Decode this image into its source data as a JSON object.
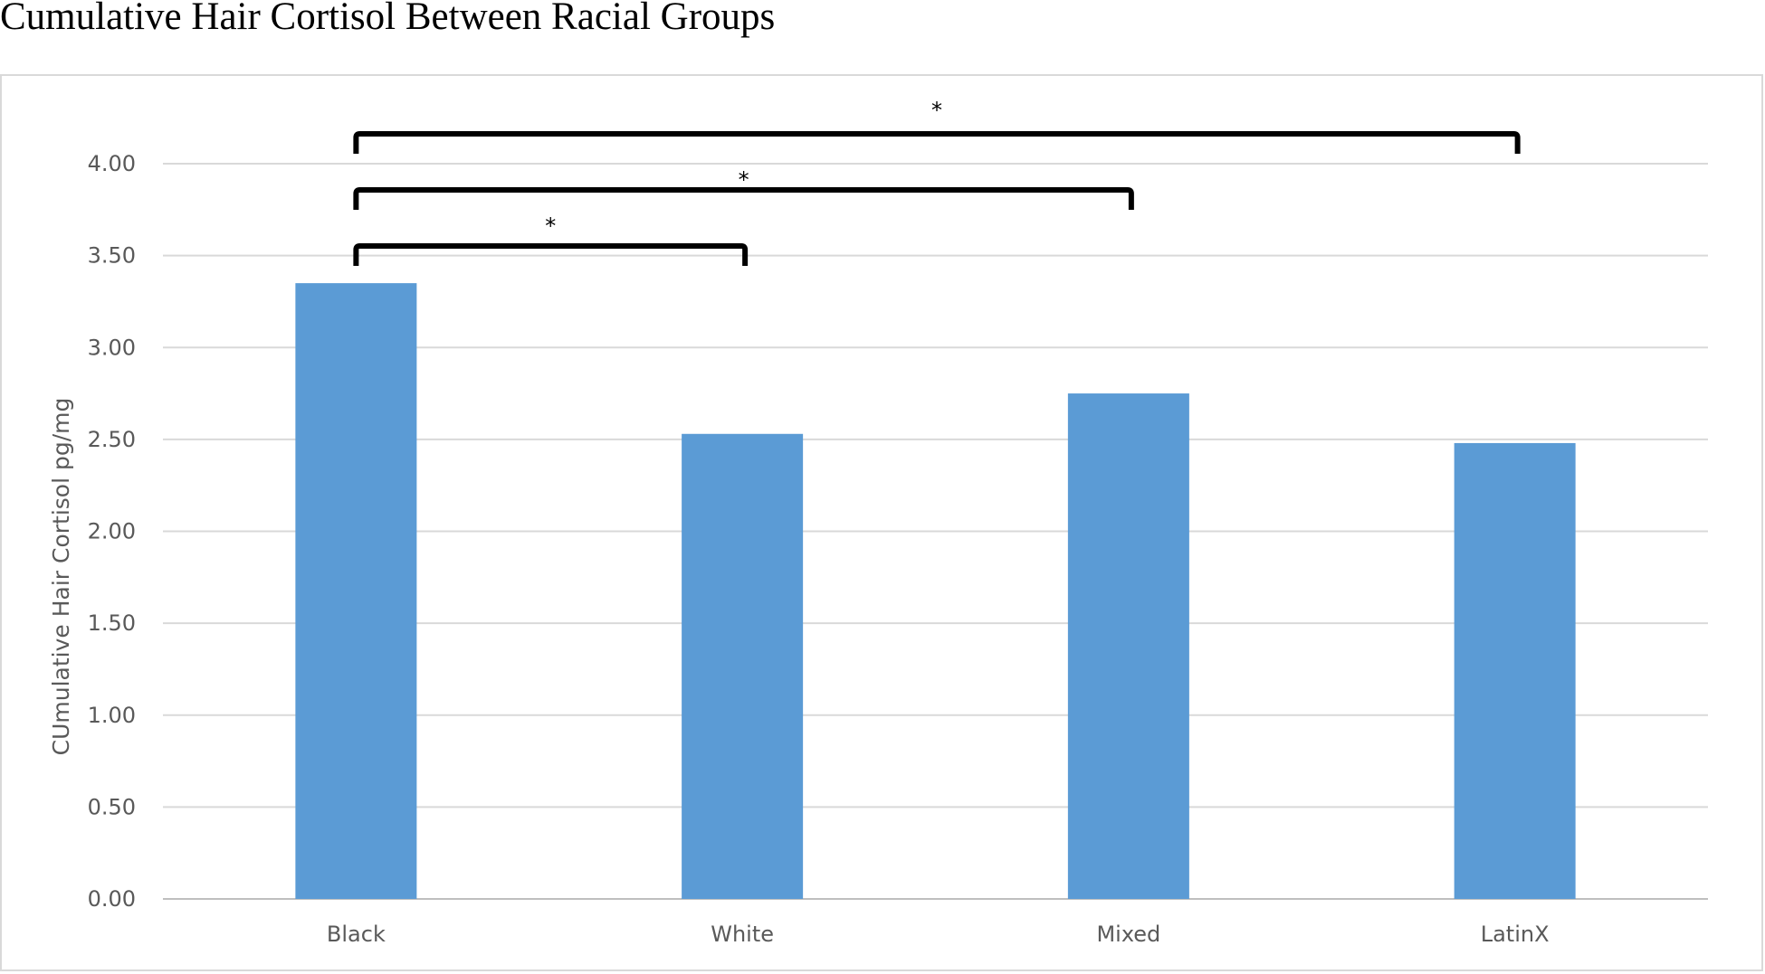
{
  "page_title": "Cumulative Hair Cortisol Between Racial Groups",
  "chart_data": {
    "type": "bar",
    "title": "",
    "xlabel": "",
    "ylabel": "CUmulative Hair Cortisol pg/mg",
    "categories": [
      "Black",
      "White",
      "Mixed",
      "LatinX"
    ],
    "values": [
      3.35,
      2.53,
      2.75,
      2.48
    ],
    "ylim": [
      0,
      4
    ],
    "y_ticks": [
      "0.00",
      "0.50",
      "1.00",
      "1.50",
      "2.00",
      "2.50",
      "3.00",
      "3.50",
      "4.00"
    ],
    "bar_color": "#5b9bd5",
    "grid": true,
    "legend": "none",
    "significance": [
      {
        "from": "Black",
        "to": "White",
        "label": "*"
      },
      {
        "from": "Black",
        "to": "Mixed",
        "label": "*"
      },
      {
        "from": "Black",
        "to": "LatinX",
        "label": "*"
      }
    ]
  }
}
